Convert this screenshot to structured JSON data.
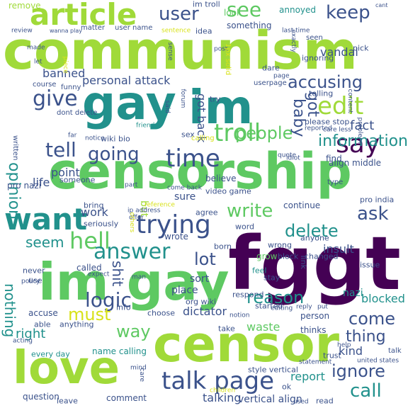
{
  "palette": [
    "#440154",
    "#3b528b",
    "#21918c",
    "#5ec962",
    "#a0da39",
    "#d8e219",
    "#fde725"
  ],
  "words": [
    {
      "t": "communism",
      "c": "#a0da39"
    },
    {
      "t": "censorship",
      "c": "#5ec962"
    },
    {
      "t": "fggt",
      "c": "#440154"
    },
    {
      "t": "gay",
      "c": "#21918c"
    },
    {
      "t": "im",
      "c": "#21918c"
    },
    {
      "t": "im gay",
      "c": "#5ec962"
    },
    {
      "t": "censor",
      "c": "#a0da39"
    },
    {
      "t": "love",
      "c": "#a0da39"
    },
    {
      "t": "article",
      "c": "#a0da39"
    },
    {
      "t": "want",
      "c": "#21918c"
    },
    {
      "t": "troll",
      "c": "#5ec962"
    },
    {
      "t": "time",
      "c": "#3b528b"
    },
    {
      "t": "trying",
      "c": "#3b528b"
    },
    {
      "t": "talk page",
      "c": "#3b528b"
    },
    {
      "t": "hell",
      "c": "#5ec962"
    },
    {
      "t": "answer",
      "c": "#21918c"
    },
    {
      "t": "say",
      "c": "#440154"
    },
    {
      "t": "edit",
      "c": "#a0da39"
    },
    {
      "t": "give",
      "c": "#3b528b"
    },
    {
      "t": "tell",
      "c": "#3b528b"
    },
    {
      "t": "keep",
      "c": "#3b528b"
    },
    {
      "t": "see",
      "c": "#5ec962"
    },
    {
      "t": "user",
      "c": "#3b528b"
    },
    {
      "t": "people",
      "c": "#5ec962"
    },
    {
      "t": "accusing",
      "c": "#3b528b"
    },
    {
      "t": "information",
      "c": "#21918c"
    },
    {
      "t": "going",
      "c": "#3b528b"
    },
    {
      "t": "ask",
      "c": "#3b528b"
    },
    {
      "t": "write",
      "c": "#5ec962"
    },
    {
      "t": "delete",
      "c": "#21918c"
    },
    {
      "t": "lot",
      "c": "#3b528b"
    },
    {
      "t": "logic",
      "c": "#3b528b"
    },
    {
      "t": "must",
      "c": "#d8e219"
    },
    {
      "t": "reason",
      "c": "#21918c"
    },
    {
      "t": "come",
      "c": "#3b528b"
    },
    {
      "t": "thing",
      "c": "#3b528b"
    },
    {
      "t": "ignore",
      "c": "#3b528b"
    },
    {
      "t": "call",
      "c": "#21918c"
    },
    {
      "t": "way",
      "c": "#5ec962"
    },
    {
      "t": "seem",
      "c": "#21918c"
    },
    {
      "t": "fact",
      "c": "#3b528b"
    },
    {
      "t": "banned",
      "c": "#3b528b"
    },
    {
      "t": "personal attack",
      "c": "#3b528b"
    },
    {
      "t": "dictator",
      "c": "#3b528b"
    },
    {
      "t": "waste",
      "c": "#5ec962"
    },
    {
      "t": "blocked",
      "c": "#21918c"
    },
    {
      "t": "kind",
      "c": "#3b528b"
    },
    {
      "t": "right",
      "c": "#21918c"
    },
    {
      "t": "report",
      "c": "#21918c"
    },
    {
      "t": "talking",
      "c": "#3b528b"
    },
    {
      "t": "vertical align",
      "c": "#3b528b"
    },
    {
      "t": "work",
      "c": "#3b528b"
    },
    {
      "t": "point",
      "c": "#3b528b"
    },
    {
      "t": "life",
      "c": "#3b528b"
    },
    {
      "t": "opinion",
      "c": "#21918c"
    },
    {
      "t": "nothing",
      "c": "#21918c"
    },
    {
      "t": "baby",
      "c": "#3b528b"
    },
    {
      "t": "got",
      "c": "#3b528b"
    },
    {
      "t": "got back",
      "c": "#3b528b"
    },
    {
      "t": "shit",
      "c": "#3b528b"
    },
    {
      "t": "insult",
      "c": "#3b528b"
    },
    {
      "t": "vandal",
      "c": "#3b528b"
    },
    {
      "t": "something",
      "c": "#3b528b"
    },
    {
      "t": "wiki bio",
      "c": "#3b528b"
    },
    {
      "t": "believe",
      "c": "#3b528b"
    },
    {
      "t": "sort",
      "c": "#3b528b"
    },
    {
      "t": "place",
      "c": "#3b528b"
    },
    {
      "t": "continue",
      "c": "#3b528b"
    },
    {
      "t": "align middle",
      "c": "#3b528b"
    },
    {
      "t": "find",
      "c": "#3b528b"
    },
    {
      "t": "please stop",
      "c": "#3b528b"
    },
    {
      "t": "sure",
      "c": "#3b528b"
    },
    {
      "t": "but",
      "c": "#a0da39"
    },
    {
      "t": "pro nazi",
      "c": "#3b528b"
    },
    {
      "t": "im troll",
      "c": "#3b528b"
    },
    {
      "t": "pick",
      "c": "#3b528b"
    },
    {
      "t": "idea",
      "c": "#3b528b"
    },
    {
      "t": "look",
      "c": "#5ec962"
    },
    {
      "t": "annoyed",
      "c": "#21918c"
    },
    {
      "t": "remove",
      "c": "#a0da39"
    },
    {
      "t": "choose",
      "c": "#3b528b"
    },
    {
      "t": "name calling",
      "c": "#21918c"
    },
    {
      "t": "question",
      "c": "#3b528b"
    },
    {
      "t": "comment",
      "c": "#3b528b"
    },
    {
      "t": "accuse",
      "c": "#3b528b"
    },
    {
      "t": "able",
      "c": "#3b528b"
    },
    {
      "t": "anything",
      "c": "#3b528b"
    },
    {
      "t": "never",
      "c": "#3b528b"
    },
    {
      "t": "called",
      "c": "#3b528b"
    },
    {
      "t": "wrong",
      "c": "#3b528b"
    },
    {
      "t": "block",
      "c": "#3b528b"
    },
    {
      "t": "changed",
      "c": "#3b528b"
    },
    {
      "t": "nazi",
      "c": "#21918c"
    },
    {
      "t": "person",
      "c": "#3b528b"
    },
    {
      "t": "thinks",
      "c": "#3b528b"
    },
    {
      "t": "started",
      "c": "#3b528b"
    },
    {
      "t": "respond",
      "c": "#3b528b"
    },
    {
      "t": "stay",
      "c": "#3b528b"
    },
    {
      "t": "feel",
      "c": "#21918c"
    },
    {
      "t": "grow",
      "c": "#5ec962"
    },
    {
      "t": "born",
      "c": "#3b528b"
    },
    {
      "t": "word",
      "c": "#3b528b"
    },
    {
      "t": "agree",
      "c": "#3b528b"
    },
    {
      "t": "wrote",
      "c": "#3b528b"
    },
    {
      "t": "issue",
      "c": "#3b528b"
    },
    {
      "t": "link",
      "c": "#3b528b"
    },
    {
      "t": "use",
      "c": "#3b528b"
    },
    {
      "t": "info",
      "c": "#3b528b"
    },
    {
      "t": "every day",
      "c": "#21918c"
    },
    {
      "t": "take",
      "c": "#3b528b"
    },
    {
      "t": "united states",
      "c": "#3b528b"
    },
    {
      "t": "style vertical",
      "c": "#3b528b"
    },
    {
      "t": "leave",
      "c": "#3b528b"
    },
    {
      "t": "read",
      "c": "#3b528b"
    },
    {
      "t": "used",
      "c": "#3b528b"
    },
    {
      "t": "ok",
      "c": "#3b528b"
    },
    {
      "t": "statement",
      "c": "#3b528b"
    },
    {
      "t": "trust",
      "c": "#3b528b"
    },
    {
      "t": "reply",
      "c": "#3b528b"
    },
    {
      "t": "put",
      "c": "#3b528b"
    },
    {
      "t": "editing",
      "c": "#3b528b"
    },
    {
      "t": "notion",
      "c": "#3b528b"
    },
    {
      "t": "org wiki",
      "c": "#3b528b"
    },
    {
      "t": "ip address",
      "c": "#3b528b"
    },
    {
      "t": "reference",
      "c": "#d8e219"
    },
    {
      "t": "offer",
      "c": "#3b528b"
    },
    {
      "t": "bring",
      "c": "#3b528b"
    },
    {
      "t": "seriously",
      "c": "#3b528b"
    },
    {
      "t": "others",
      "c": "#d8e219"
    },
    {
      "t": "pro india",
      "c": "#3b528b"
    },
    {
      "t": "video game",
      "c": "#3b528b"
    },
    {
      "t": "someone",
      "c": "#3b528b"
    },
    {
      "t": "policy",
      "c": "#3b528b"
    },
    {
      "t": "expect",
      "c": "#3b528b"
    },
    {
      "t": "man",
      "c": "#3b528b"
    },
    {
      "t": "come back",
      "c": "#3b528b"
    },
    {
      "t": "part",
      "c": "#3b528b"
    },
    {
      "t": "quote",
      "c": "#3b528b"
    },
    {
      "t": "idiot",
      "c": "#3b528b"
    },
    {
      "t": "notice",
      "c": "#3b528b"
    },
    {
      "t": "far",
      "c": "#3b528b"
    },
    {
      "t": "written",
      "c": "#3b528b"
    },
    {
      "t": "sex",
      "c": "#3b528b"
    },
    {
      "t": "calling",
      "c": "#d8e219"
    },
    {
      "t": "friend",
      "c": "#21918c"
    },
    {
      "t": "dont delete",
      "c": "#3b528b"
    },
    {
      "t": "funny",
      "c": "#3b528b"
    },
    {
      "t": "course",
      "c": "#3b528b"
    },
    {
      "t": "said",
      "c": "#3b528b"
    },
    {
      "t": "forum",
      "c": "#3b528b"
    },
    {
      "t": "try",
      "c": "#3b528b"
    },
    {
      "t": "telling",
      "c": "#3b528b"
    },
    {
      "t": "reported",
      "c": "#3b528b"
    },
    {
      "t": "care less",
      "c": "#3b528b"
    },
    {
      "t": "content",
      "c": "#3b528b"
    },
    {
      "t": "problem",
      "c": "#3b528b"
    },
    {
      "t": "type",
      "c": "#3b528b"
    },
    {
      "t": "anyone",
      "c": "#3b528b"
    },
    {
      "t": "help",
      "c": "#3b528b"
    },
    {
      "t": "acting",
      "c": "#3b528b"
    },
    {
      "t": "mind",
      "c": "#3b528b"
    },
    {
      "t": "care",
      "c": "#3b528b"
    },
    {
      "t": "children",
      "c": "#d8e219"
    },
    {
      "t": "talk",
      "c": "#3b528b"
    },
    {
      "t": "dare",
      "c": "#3b528b"
    },
    {
      "t": "userpage",
      "c": "#3b528b"
    },
    {
      "t": "page",
      "c": "#3b528b"
    },
    {
      "t": "ignoring",
      "c": "#3b528b"
    },
    {
      "t": "seen",
      "c": "#3b528b"
    },
    {
      "t": "exactly",
      "c": "#3b528b"
    },
    {
      "t": "last time",
      "c": "#3b528b"
    },
    {
      "t": "post",
      "c": "#3b528b"
    },
    {
      "t": "1px solid",
      "c": "#d8e219"
    },
    {
      "t": "sense",
      "c": "#3b528b"
    },
    {
      "t": "sentence",
      "c": "#d8e219"
    },
    {
      "t": "matter",
      "c": "#3b528b"
    },
    {
      "t": "user name",
      "c": "#3b528b"
    },
    {
      "t": "wanna play",
      "c": "#3b528b"
    },
    {
      "t": "review",
      "c": "#3b528b"
    },
    {
      "t": "made",
      "c": "#3b528b"
    },
    {
      "t": "let",
      "c": "#3b528b"
    },
    {
      "t": "piece",
      "c": "#d8e219"
    },
    {
      "t": "cant",
      "c": "#3b528b"
    }
  ]
}
